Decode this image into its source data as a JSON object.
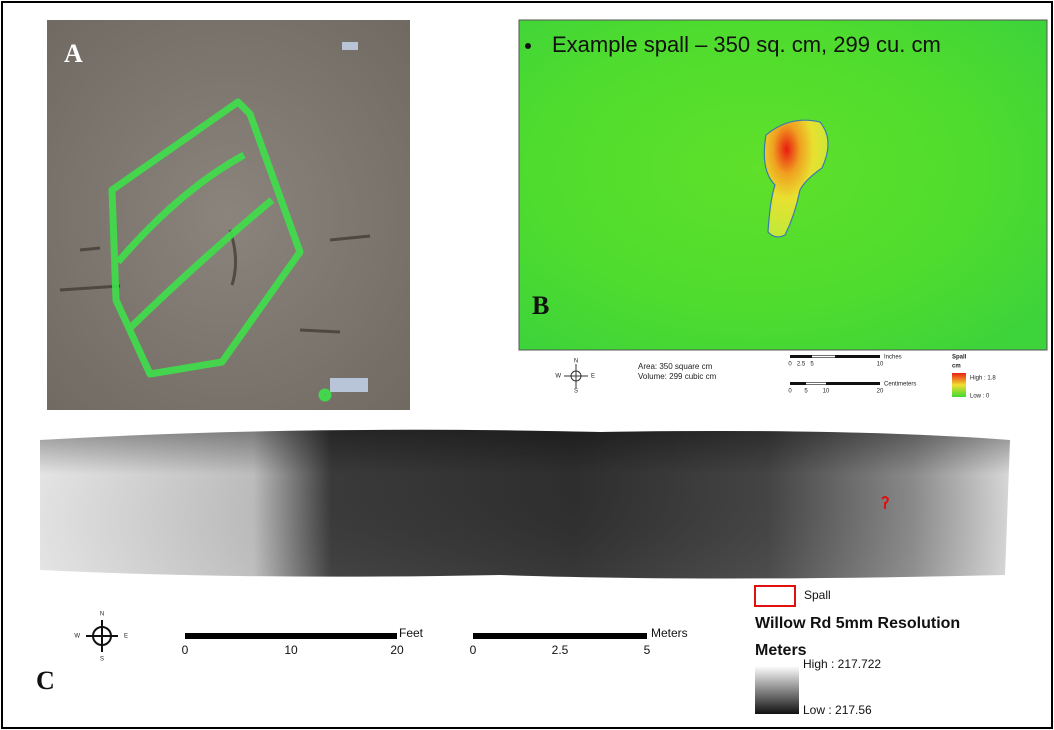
{
  "panel_a": {
    "label": "A"
  },
  "panel_b": {
    "label": "B",
    "caption": "Example spall – 350 sq. cm, 299 cu. cm",
    "area": "Area: 350 square cm",
    "volume": "Volume: 299 cubic cm",
    "scale_inches": {
      "unit": "Inches",
      "ticks": [
        0,
        2.5,
        5,
        10
      ]
    },
    "scale_cm": {
      "unit": "Centimeters",
      "ticks": [
        0,
        5,
        10,
        20
      ]
    },
    "legend": {
      "title": "Spall",
      "unit": "cm",
      "high": "High : 1.8",
      "low": "Low : 0"
    },
    "compass": {
      "n": "N",
      "e": "E",
      "s": "S",
      "w": "W"
    }
  },
  "panel_c": {
    "label": "C",
    "scale_feet": {
      "unit": "Feet",
      "ticks": [
        0,
        10,
        20
      ]
    },
    "scale_meters": {
      "unit": "Meters",
      "ticks": [
        0,
        2.5,
        5
      ]
    },
    "compass": {
      "n": "N",
      "e": "E",
      "s": "S",
      "w": "W"
    },
    "legend": {
      "spall": "Spall",
      "title": "Willow Rd 5mm Resolution",
      "unit": "Meters",
      "high": "High : 217.722",
      "low": "Low : 217.56"
    }
  }
}
